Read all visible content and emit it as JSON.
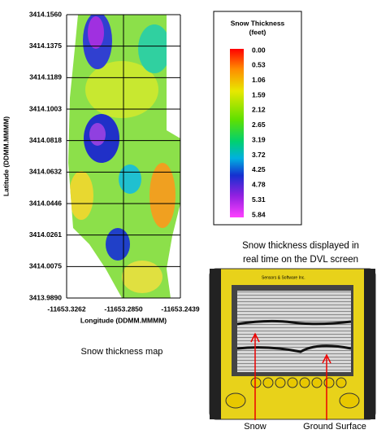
{
  "map": {
    "y_axis_label": "Latitude (DDMM.MMMM)",
    "x_axis_label": "Longitude (DDMM.MMMM)",
    "y_ticks": [
      "3414.1560",
      "3414.1375",
      "3414.1189",
      "3414.1003",
      "3414.0818",
      "3414.0632",
      "3414.0446",
      "3414.0261",
      "3414.0075",
      "3413.9890"
    ],
    "x_ticks": [
      "-11653.3262",
      "-11653.2850",
      "-11653.2439"
    ],
    "caption": "Snow thickness map"
  },
  "legend": {
    "title": "Snow Thickness",
    "unit": "(feet)",
    "labels": [
      "0.00",
      "0.53",
      "1.06",
      "1.59",
      "2.12",
      "2.65",
      "3.19",
      "3.72",
      "4.25",
      "4.78",
      "5.31",
      "5.84"
    ]
  },
  "device": {
    "caption_lines": [
      "Snow thickness displayed in",
      "real time on the DVL screen"
    ],
    "brand": "Sensors & Software Inc.",
    "labels": [
      "Snow",
      "Ground Surface"
    ]
  }
}
